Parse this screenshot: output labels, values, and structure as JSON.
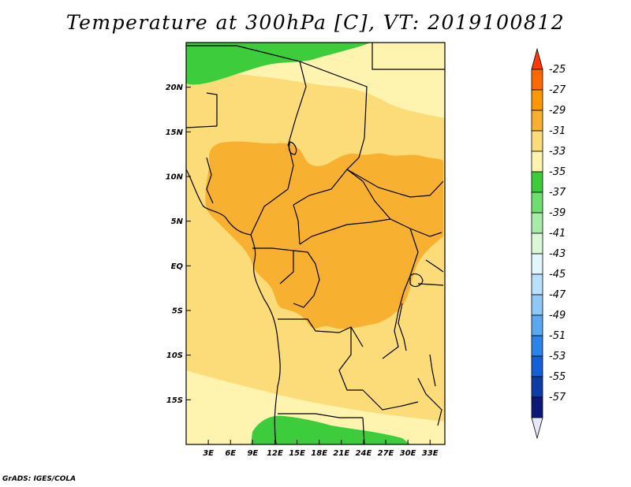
{
  "title": "Temperature at 300hPa [C], VT: 2019100812",
  "credit": "GrADS: IGES/COLA",
  "map": {
    "lon_range": [
      0,
      35
    ],
    "lat_range": [
      -20,
      25
    ],
    "lat_ticks": [
      {
        "lat": 20,
        "label": "20N"
      },
      {
        "lat": 15,
        "label": "15N"
      },
      {
        "lat": 10,
        "label": "10N"
      },
      {
        "lat": 5,
        "label": "5N"
      },
      {
        "lat": 0,
        "label": "EQ"
      },
      {
        "lat": -5,
        "label": "5S"
      },
      {
        "lat": -10,
        "label": "10S"
      },
      {
        "lat": -15,
        "label": "15S"
      }
    ],
    "lon_ticks": [
      {
        "lon": 3,
        "label": "3E"
      },
      {
        "lon": 6,
        "label": "6E"
      },
      {
        "lon": 9,
        "label": "9E"
      },
      {
        "lon": 12,
        "label": "12E"
      },
      {
        "lon": 15,
        "label": "15E"
      },
      {
        "lon": 18,
        "label": "18E"
      },
      {
        "lon": 21,
        "label": "21E"
      },
      {
        "lon": 24,
        "label": "24E"
      },
      {
        "lon": 27,
        "label": "27E"
      },
      {
        "lon": 30,
        "label": "30E"
      },
      {
        "lon": 33,
        "label": "33E"
      }
    ]
  },
  "colorbar": {
    "levels": [
      {
        "label": "-25",
        "color": "#ff6a00"
      },
      {
        "label": "-27",
        "color": "#ff9800"
      },
      {
        "label": "-29",
        "color": "#f8b030"
      },
      {
        "label": "-31",
        "color": "#fcdc78"
      },
      {
        "label": "-33",
        "color": "#fff3b0"
      },
      {
        "label": "-35",
        "color": "#3ccc3c"
      },
      {
        "label": "-37",
        "color": "#6ede6e"
      },
      {
        "label": "-39",
        "color": "#a6eca6"
      },
      {
        "label": "-41",
        "color": "#d8f8d8"
      },
      {
        "label": "-43",
        "color": "#e2f6ff"
      },
      {
        "label": "-45",
        "color": "#b8e0ff"
      },
      {
        "label": "-47",
        "color": "#8ec8f6"
      },
      {
        "label": "-49",
        "color": "#5aa8f0"
      },
      {
        "label": "-51",
        "color": "#2c84e8"
      },
      {
        "label": "-53",
        "color": "#1460d8"
      },
      {
        "label": "-55",
        "color": "#0c3ca8"
      },
      {
        "label": "-57",
        "color": "#0a1878"
      }
    ],
    "top_color": "#ff3c00",
    "bottom_color": "#e8e8fc"
  }
}
